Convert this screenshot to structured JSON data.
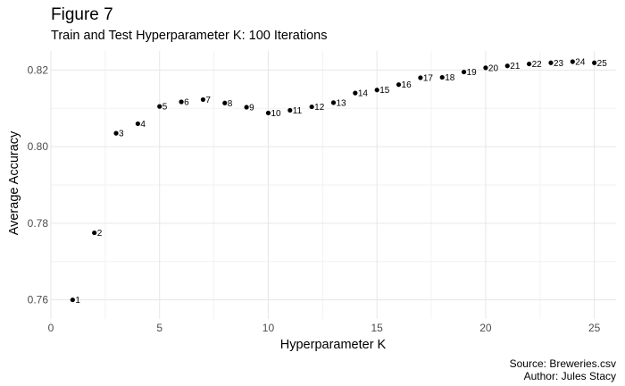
{
  "figure": {
    "title": "Figure 7",
    "subtitle": "Train and Test Hyperparameter K: 100 Iterations",
    "caption_source": "Source: Breweries.csv",
    "caption_author": "Author: Jules Stacy"
  },
  "chart_data": {
    "type": "scatter",
    "title": "Figure 7",
    "subtitle": "Train and Test Hyperparameter K: 100 Iterations",
    "xlabel": "Hyperparameter K",
    "ylabel": "Average Accuracy",
    "xlim": [
      0,
      26
    ],
    "ylim": [
      0.755,
      0.825
    ],
    "x_ticks": [
      0,
      5,
      10,
      15,
      20,
      25
    ],
    "x_tick_labels": [
      "0",
      "5",
      "10",
      "15",
      "20",
      "25"
    ],
    "y_ticks": [
      0.76,
      0.78,
      0.8,
      0.82
    ],
    "y_tick_labels": [
      "0.76",
      "0.78",
      "0.80",
      "0.82"
    ],
    "grid": true,
    "point_color": "#000000",
    "points": [
      {
        "x": 1,
        "y": 0.76,
        "label": "1"
      },
      {
        "x": 2,
        "y": 0.7775,
        "label": "2"
      },
      {
        "x": 3,
        "y": 0.8035,
        "label": "3"
      },
      {
        "x": 4,
        "y": 0.806,
        "label": "4"
      },
      {
        "x": 5,
        "y": 0.8105,
        "label": "5"
      },
      {
        "x": 6,
        "y": 0.8117,
        "label": "6"
      },
      {
        "x": 7,
        "y": 0.8123,
        "label": "7"
      },
      {
        "x": 8,
        "y": 0.8114,
        "label": "8"
      },
      {
        "x": 9,
        "y": 0.8103,
        "label": "9"
      },
      {
        "x": 10,
        "y": 0.8088,
        "label": "10"
      },
      {
        "x": 11,
        "y": 0.8095,
        "label": "11"
      },
      {
        "x": 12,
        "y": 0.8104,
        "label": "12"
      },
      {
        "x": 13,
        "y": 0.8115,
        "label": "13"
      },
      {
        "x": 14,
        "y": 0.814,
        "label": "14"
      },
      {
        "x": 15,
        "y": 0.8148,
        "label": "15"
      },
      {
        "x": 16,
        "y": 0.8162,
        "label": "16"
      },
      {
        "x": 17,
        "y": 0.818,
        "label": "17"
      },
      {
        "x": 18,
        "y": 0.8181,
        "label": "18"
      },
      {
        "x": 19,
        "y": 0.8195,
        "label": "19"
      },
      {
        "x": 20,
        "y": 0.8206,
        "label": "20"
      },
      {
        "x": 21,
        "y": 0.8211,
        "label": "21"
      },
      {
        "x": 22,
        "y": 0.8216,
        "label": "22"
      },
      {
        "x": 23,
        "y": 0.8219,
        "label": "23"
      },
      {
        "x": 24,
        "y": 0.8222,
        "label": "24"
      },
      {
        "x": 25,
        "y": 0.8219,
        "label": "25"
      }
    ]
  }
}
